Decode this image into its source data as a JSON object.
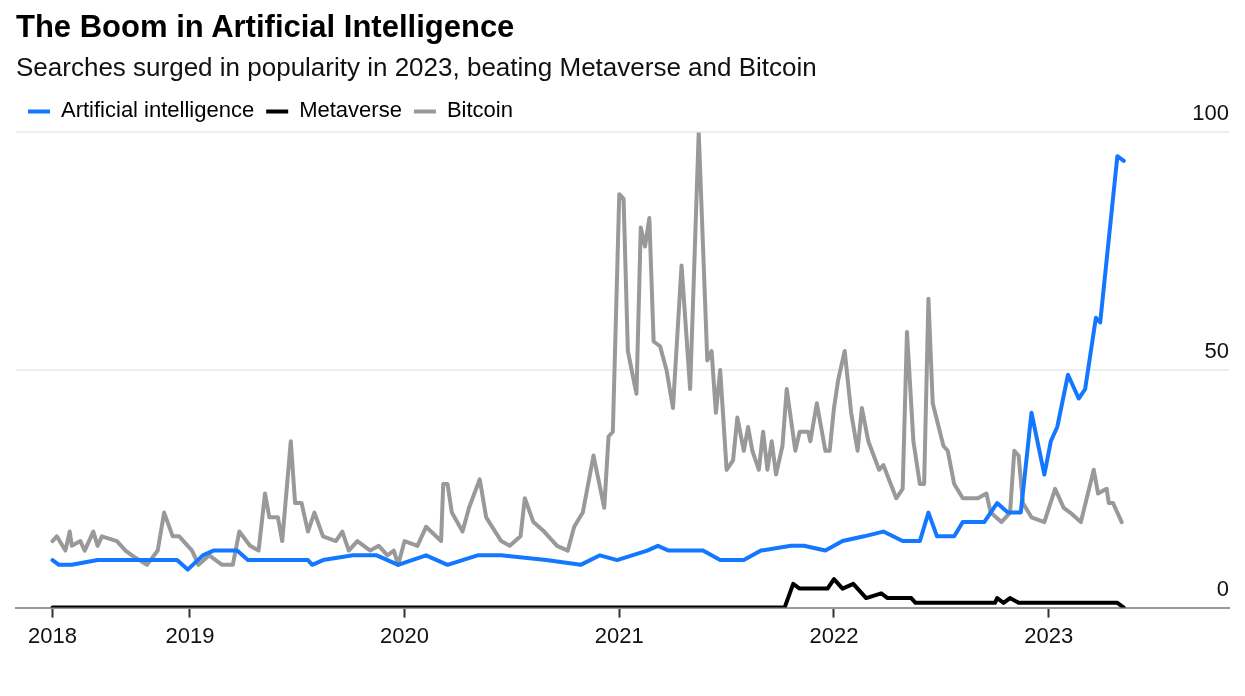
{
  "chart_data": {
    "type": "line",
    "title": "The Boom in Artificial Intelligence",
    "subtitle": "Searches surged in popularity in 2023, beating Metaverse and Bitcoin",
    "xlim": [
      2018.19,
      2023.84
    ],
    "xticks": [
      {
        "value": 2018.36,
        "label": "2018"
      },
      2019,
      2020,
      2021,
      2022,
      2023
    ],
    "ylim": [
      0,
      100
    ],
    "yticks": [
      0,
      50,
      100
    ],
    "grid": "y",
    "legend": "top left",
    "marker": "none",
    "series": [
      {
        "name": "Artificial intelligence",
        "color": "#1477ff",
        "x": [
          2018.36,
          2018.39,
          2018.45,
          2018.57,
          2018.67,
          2018.94,
          2018.99,
          2019.06,
          2019.11,
          2019.22,
          2019.27,
          2019.55,
          2019.57,
          2019.62,
          2019.76,
          2019.87,
          2019.97,
          2020.1,
          2020.2,
          2020.34,
          2020.45,
          2020.66,
          2020.82,
          2020.91,
          2020.99,
          2021.13,
          2021.18,
          2021.23,
          2021.39,
          2021.47,
          2021.58,
          2021.66,
          2021.8,
          2021.86,
          2021.96,
          2022.04,
          2022.14,
          2022.23,
          2022.32,
          2022.4,
          2022.44,
          2022.48,
          2022.56,
          2022.6,
          2022.7,
          2022.76,
          2022.81,
          2022.87,
          2022.92,
          2022.98,
          2023.01,
          2023.04,
          2023.09,
          2023.14,
          2023.17,
          2023.22,
          2023.24,
          2023.32,
          2023.35
        ],
        "values": [
          10,
          9,
          9,
          10,
          10,
          10,
          8,
          11,
          12,
          12,
          10,
          10,
          9,
          10,
          11,
          11,
          9,
          11,
          9,
          11,
          11,
          10,
          9,
          11,
          10,
          12,
          13,
          12,
          12,
          10,
          10,
          12,
          13,
          13,
          12,
          14,
          15,
          16,
          14,
          14,
          20,
          15,
          15,
          18,
          18,
          22,
          20,
          20,
          41,
          28,
          35,
          38,
          49,
          44,
          46,
          61,
          60,
          95,
          94
        ]
      },
      {
        "name": "Metaverse",
        "color": "#000000",
        "x": [
          2018.36,
          2021.77,
          2021.81,
          2021.84,
          2021.97,
          2022.0,
          2022.04,
          2022.09,
          2022.15,
          2022.22,
          2022.25,
          2022.36,
          2022.38,
          2022.75,
          2022.76,
          2022.79,
          2022.82,
          2022.86,
          2023.32,
          2023.35
        ],
        "values": [
          0,
          0,
          5,
          4,
          4,
          6,
          4,
          5,
          2,
          3,
          2,
          2,
          1,
          1,
          2,
          1,
          2,
          1,
          1,
          0
        ]
      },
      {
        "name": "Bitcoin",
        "color": "#999999",
        "x": [
          2018.36,
          2018.38,
          2018.42,
          2018.44,
          2018.45,
          2018.49,
          2018.51,
          2018.55,
          2018.57,
          2018.59,
          2018.66,
          2018.7,
          2018.73,
          2018.8,
          2018.85,
          2018.88,
          2018.92,
          2018.95,
          2018.99,
          2019.01,
          2019.04,
          2019.09,
          2019.15,
          2019.2,
          2019.23,
          2019.28,
          2019.32,
          2019.35,
          2019.37,
          2019.41,
          2019.43,
          2019.47,
          2019.49,
          2019.52,
          2019.55,
          2019.58,
          2019.62,
          2019.68,
          2019.71,
          2019.74,
          2019.78,
          2019.84,
          2019.88,
          2019.92,
          2019.95,
          2019.97,
          2020.0,
          2020.06,
          2020.1,
          2020.17,
          2020.18,
          2020.2,
          2020.22,
          2020.27,
          2020.3,
          2020.35,
          2020.38,
          2020.45,
          2020.49,
          2020.54,
          2020.56,
          2020.6,
          2020.65,
          2020.71,
          2020.76,
          2020.79,
          2020.83,
          2020.88,
          2020.93,
          2020.95,
          2020.97,
          2021.0,
          2021.02,
          2021.04,
          2021.08,
          2021.1,
          2021.12,
          2021.14,
          2021.16,
          2021.19,
          2021.22,
          2021.25,
          2021.29,
          2021.33,
          2021.37,
          2021.41,
          2021.43,
          2021.45,
          2021.47,
          2021.5,
          2021.53,
          2021.55,
          2021.58,
          2021.6,
          2021.62,
          2021.65,
          2021.67,
          2021.69,
          2021.71,
          2021.73,
          2021.76,
          2021.78,
          2021.82,
          2021.84,
          2021.88,
          2021.89,
          2021.92,
          2021.96,
          2021.98,
          2022.0,
          2022.02,
          2022.05,
          2022.08,
          2022.11,
          2022.13,
          2022.16,
          2022.21,
          2022.23,
          2022.29,
          2022.32,
          2022.34,
          2022.37,
          2022.4,
          2022.42,
          2022.44,
          2022.46,
          2022.51,
          2022.53,
          2022.56,
          2022.6,
          2022.67,
          2022.71,
          2022.73,
          2022.78,
          2022.82,
          2022.84,
          2022.86,
          2022.88,
          2022.92,
          2022.98,
          2023.03,
          2023.07,
          2023.1,
          2023.15,
          2023.21,
          2023.23,
          2023.27,
          2023.28,
          2023.3,
          2023.34
        ],
        "values": [
          14,
          15,
          12,
          16,
          13,
          14,
          12,
          16,
          13,
          15,
          14,
          12,
          11,
          9,
          12,
          20,
          15,
          15,
          13,
          12,
          9,
          11,
          9,
          9,
          16,
          13,
          12,
          24,
          19,
          19,
          14,
          35,
          22,
          22,
          16,
          20,
          15,
          14,
          16,
          12,
          14,
          12,
          13,
          11,
          12,
          9,
          14,
          13,
          17,
          14,
          26,
          26,
          20,
          16,
          21,
          27,
          19,
          14,
          13,
          15,
          23,
          18,
          16,
          13,
          12,
          17,
          20,
          32,
          21,
          36,
          37,
          87,
          86,
          54,
          45,
          80,
          76,
          82,
          56,
          55,
          50,
          42,
          72,
          46,
          100,
          52,
          54,
          41,
          50,
          29,
          31,
          40,
          33,
          38,
          33,
          29,
          37,
          29,
          35,
          28,
          34,
          46,
          33,
          37,
          37,
          35,
          43,
          33,
          33,
          42,
          48,
          54,
          41,
          33,
          42,
          35,
          29,
          30,
          23,
          25,
          58,
          35,
          26,
          26,
          65,
          43,
          34,
          33,
          26,
          23,
          23,
          24,
          20,
          18,
          20,
          33,
          32,
          22,
          19,
          18,
          25,
          21,
          20,
          18,
          29,
          24,
          25,
          22,
          22,
          18
        ]
      }
    ]
  }
}
